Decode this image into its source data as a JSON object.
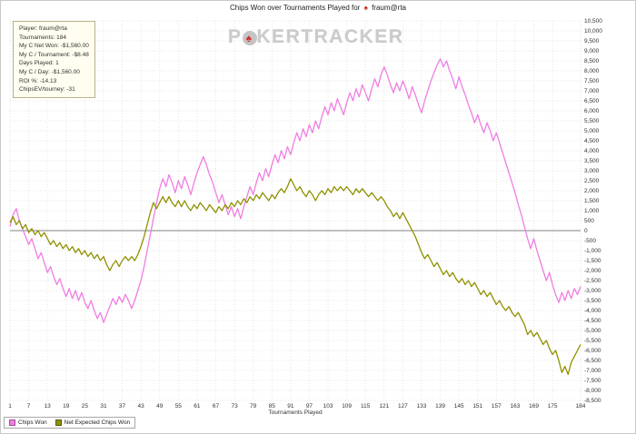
{
  "title": {
    "prefix": "Chips Won over Tournaments Played for",
    "player": "fraum@rta"
  },
  "icons": {
    "spade": "♠"
  },
  "watermark": {
    "p1": "P",
    "p2": "KER",
    "p3": "TRACKER"
  },
  "infobox": {
    "lines": [
      "Player: fraum@rta",
      "Tournaments: 184",
      "My C Net Won: -$1,560.00",
      "My C / Tournament: -$8.48",
      "Days Played: 1",
      "My C / Day: -$1,560.00",
      "ROI %: -14.13",
      "ChipsEV/tourney: -31"
    ]
  },
  "chart_data": {
    "type": "line",
    "title": "Chips Won over Tournaments Played for fraum@rta",
    "xlabel": "Tournaments Played",
    "ylabel": "",
    "xlim": [
      1,
      184
    ],
    "ylim": [
      -8500,
      10500
    ],
    "ytick_step": 500,
    "xticks": [
      1,
      7,
      13,
      19,
      25,
      31,
      37,
      43,
      49,
      55,
      61,
      67,
      73,
      79,
      85,
      91,
      97,
      103,
      109,
      115,
      121,
      127,
      133,
      139,
      145,
      151,
      157,
      163,
      169,
      175,
      184
    ],
    "grid": true,
    "zero_line": true,
    "legend_position": "bottom-left",
    "colors": {
      "grid": "#dcdcdc",
      "zero_line": "#808080",
      "tick_text": "#333333"
    },
    "series": [
      {
        "name": "Chips Won",
        "color": "#f07de2",
        "values": [
          200,
          800,
          1100,
          500,
          100,
          -300,
          -700,
          -400,
          -900,
          -1400,
          -1100,
          -1600,
          -2100,
          -1800,
          -2300,
          -2700,
          -2400,
          -2900,
          -3300,
          -2900,
          -3400,
          -3000,
          -3500,
          -3100,
          -3600,
          -3900,
          -3500,
          -4000,
          -4400,
          -4100,
          -4600,
          -4200,
          -3800,
          -3400,
          -3700,
          -3300,
          -3600,
          -3200,
          -3500,
          -3900,
          -3500,
          -3000,
          -2500,
          -1800,
          -1000,
          -200,
          600,
          1400,
          2100,
          2600,
          2200,
          2800,
          2400,
          1900,
          2500,
          2100,
          2700,
          2300,
          1800,
          2400,
          2900,
          3300,
          3700,
          3300,
          2800,
          2400,
          1900,
          1400,
          1800,
          1300,
          800,
          1200,
          700,
          1100,
          600,
          1200,
          1700,
          2200,
          1800,
          2400,
          2900,
          2500,
          3100,
          2700,
          3300,
          3800,
          3400,
          4000,
          3600,
          4200,
          3800,
          4400,
          4900,
          4500,
          5100,
          4700,
          5300,
          4900,
          5500,
          5100,
          5700,
          6200,
          5800,
          6400,
          6000,
          6600,
          6200,
          5800,
          6400,
          6900,
          6500,
          7100,
          6700,
          7300,
          6900,
          6500,
          7100,
          7600,
          7200,
          7800,
          8200,
          7800,
          7300,
          6900,
          7400,
          7000,
          7500,
          7100,
          6600,
          7200,
          6800,
          6300,
          5900,
          6500,
          7000,
          7500,
          7900,
          8300,
          8600,
          8200,
          8500,
          8000,
          7600,
          7100,
          7700,
          7200,
          6800,
          6300,
          5900,
          5400,
          5800,
          5300,
          4900,
          5400,
          5000,
          4500,
          4900,
          4400,
          3900,
          3400,
          2900,
          2400,
          1900,
          1300,
          800,
          200,
          -400,
          -900,
          -400,
          -1000,
          -1500,
          -2000,
          -2500,
          -2100,
          -2700,
          -3200,
          -3600,
          -3100,
          -3500,
          -3000,
          -3400,
          -2900,
          -3200,
          -2800
        ]
      },
      {
        "name": "Net Expected Chips Won",
        "color": "#8f9100",
        "values": [
          400,
          700,
          300,
          500,
          100,
          300,
          -100,
          100,
          -200,
          0,
          -300,
          -100,
          -400,
          -700,
          -500,
          -800,
          -600,
          -900,
          -700,
          -1000,
          -800,
          -1100,
          -900,
          -1200,
          -1000,
          -1300,
          -1100,
          -1400,
          -1200,
          -1500,
          -1300,
          -1700,
          -2000,
          -1700,
          -1500,
          -1800,
          -1500,
          -1300,
          -1500,
          -1300,
          -1500,
          -1200,
          -800,
          -300,
          300,
          900,
          1400,
          1100,
          1400,
          1700,
          1400,
          1700,
          1400,
          1200,
          1500,
          1200,
          1500,
          1200,
          1000,
          1300,
          1100,
          1400,
          1200,
          1000,
          1300,
          1100,
          900,
          1200,
          1000,
          1300,
          1100,
          1400,
          1200,
          1500,
          1300,
          1600,
          1400,
          1700,
          1500,
          1800,
          1600,
          1900,
          1700,
          1500,
          1800,
          1600,
          1900,
          2100,
          1900,
          2200,
          2600,
          2300,
          2000,
          2200,
          1900,
          1700,
          2000,
          1800,
          1500,
          1800,
          2000,
          1800,
          2100,
          1900,
          2200,
          2000,
          2200,
          2000,
          2200,
          2000,
          1800,
          2100,
          1900,
          2100,
          1900,
          1700,
          1900,
          1700,
          1500,
          1700,
          1500,
          1200,
          1000,
          700,
          900,
          600,
          900,
          600,
          300,
          0,
          -300,
          -700,
          -1100,
          -1400,
          -1200,
          -1500,
          -1800,
          -1600,
          -1900,
          -2200,
          -2000,
          -2300,
          -2100,
          -2400,
          -2600,
          -2400,
          -2700,
          -2500,
          -2800,
          -2600,
          -2900,
          -3200,
          -3000,
          -3300,
          -3100,
          -3400,
          -3700,
          -3500,
          -3800,
          -4000,
          -3800,
          -4100,
          -4300,
          -4100,
          -4400,
          -4700,
          -5200,
          -5000,
          -5300,
          -5100,
          -5400,
          -5700,
          -5500,
          -5900,
          -6200,
          -6000,
          -6500,
          -7100,
          -6800,
          -7200,
          -6600,
          -6300,
          -6000,
          -5700
        ]
      }
    ]
  }
}
